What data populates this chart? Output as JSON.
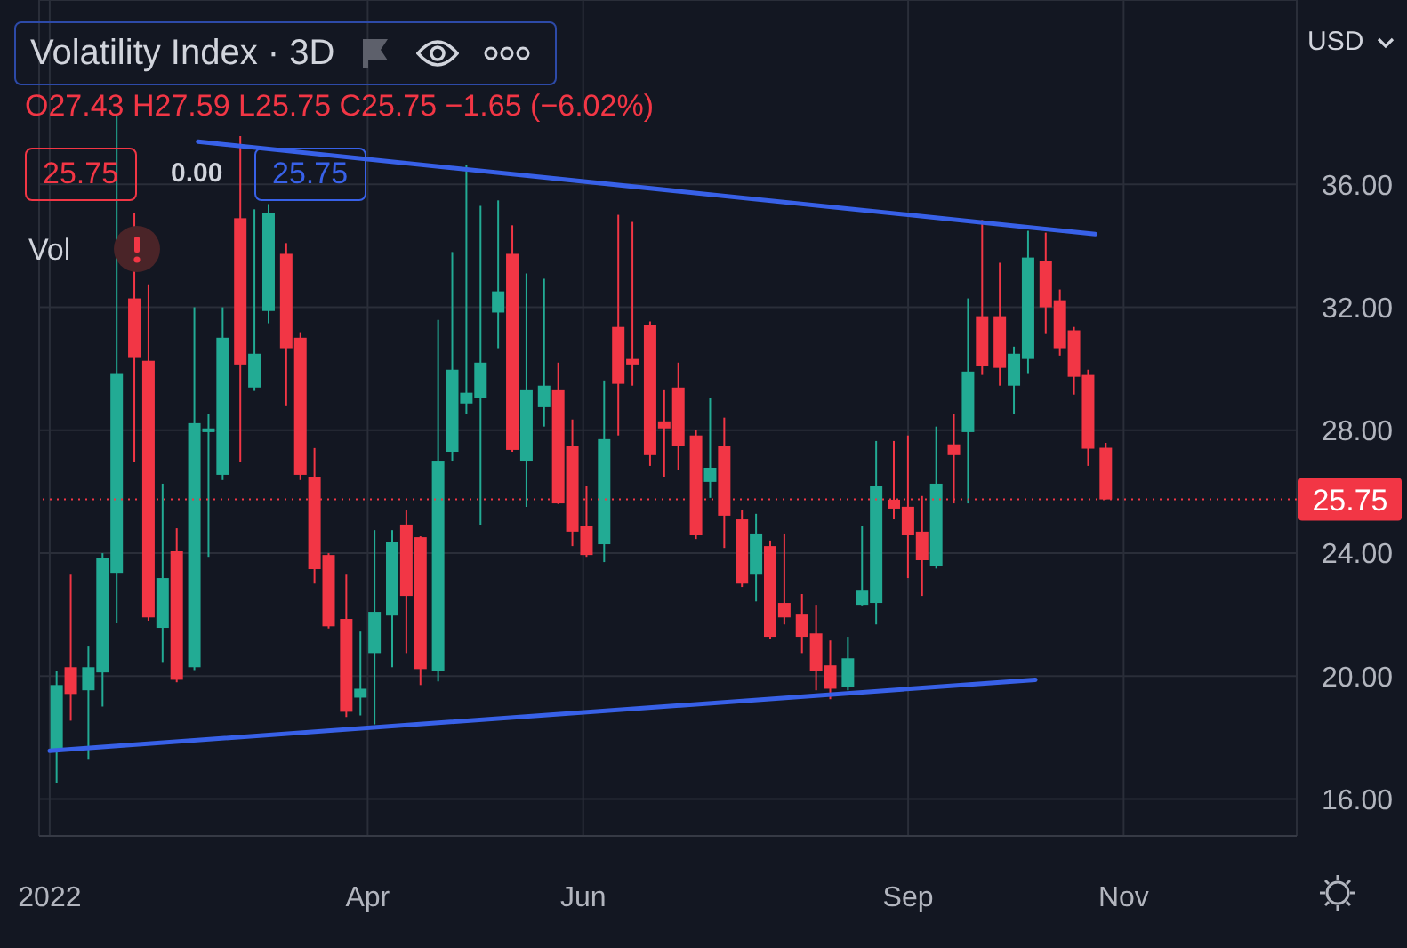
{
  "chart_data": {
    "type": "candlestick",
    "title": "Volatility Index · 3D",
    "annotations": [
      "O27.43 H27.59 L25.75 C25.75 −1.65 (−6.02%)",
      "25.75",
      "0.00",
      "25.75",
      "Vol",
      "USD"
    ],
    "x": [
      "2022-01-03",
      "2022-01-07",
      "2022-01-12",
      "2022-01-16",
      "2022-01-20",
      "2022-01-25",
      "2022-01-29",
      "2022-02-02",
      "2022-02-06",
      "2022-02-11",
      "2022-02-15",
      "2022-02-19",
      "2022-02-24",
      "2022-02-28",
      "2022-03-04",
      "2022-03-09",
      "2022-03-13",
      "2022-03-17",
      "2022-03-21",
      "2022-03-26",
      "2022-03-30",
      "2022-04-03",
      "2022-04-08",
      "2022-04-12",
      "2022-04-16",
      "2022-04-21",
      "2022-04-25",
      "2022-04-29",
      "2022-05-03",
      "2022-05-08",
      "2022-05-12",
      "2022-05-16",
      "2022-05-21",
      "2022-05-25",
      "2022-05-29",
      "2022-06-02",
      "2022-06-07",
      "2022-06-11",
      "2022-06-15",
      "2022-06-20",
      "2022-06-24",
      "2022-06-28",
      "2022-07-03",
      "2022-07-07",
      "2022-07-11",
      "2022-07-16",
      "2022-07-20",
      "2022-07-24",
      "2022-07-28",
      "2022-08-02",
      "2022-08-06",
      "2022-08-10",
      "2022-08-15",
      "2022-08-19",
      "2022-08-23",
      "2022-08-28",
      "2022-09-01",
      "2022-09-05",
      "2022-09-09",
      "2022-09-14",
      "2022-09-18",
      "2022-09-22",
      "2022-09-27",
      "2022-10-01",
      "2022-10-05",
      "2022-10-10",
      "2022-10-14",
      "2022-10-18",
      "2022-10-22",
      "2022-10-27"
    ],
    "ohlc": [
      [
        17.57,
        20.17,
        16.52,
        19.71
      ],
      [
        20.29,
        23.3,
        18.55,
        19.42
      ],
      [
        19.54,
        20.99,
        17.28,
        20.29
      ],
      [
        20.12,
        24.0,
        19.01,
        23.83
      ],
      [
        23.36,
        38.26,
        21.74,
        29.86
      ],
      [
        32.29,
        35.07,
        26.96,
        30.38
      ],
      [
        30.26,
        32.75,
        21.8,
        21.91
      ],
      [
        21.57,
        26.26,
        20.46,
        23.19
      ],
      [
        24.06,
        24.81,
        19.8,
        19.88
      ],
      [
        20.29,
        32.0,
        20.2,
        28.23
      ],
      [
        27.94,
        28.52,
        23.88,
        28.06
      ],
      [
        26.55,
        32.0,
        26.38,
        31.01
      ],
      [
        34.9,
        37.57,
        26.96,
        30.14
      ],
      [
        29.39,
        35.19,
        29.28,
        30.49
      ],
      [
        31.88,
        35.36,
        31.48,
        35.07
      ],
      [
        33.74,
        34.09,
        28.81,
        30.67
      ],
      [
        31.01,
        31.19,
        26.38,
        26.55
      ],
      [
        26.49,
        27.42,
        23.01,
        23.48
      ],
      [
        23.94,
        24.0,
        21.55,
        21.62
      ],
      [
        21.86,
        23.3,
        18.67,
        18.84
      ],
      [
        19.3,
        21.45,
        18.72,
        19.59
      ],
      [
        20.75,
        24.75,
        18.43,
        22.09
      ],
      [
        21.97,
        24.75,
        20.29,
        24.35
      ],
      [
        24.93,
        25.39,
        20.75,
        22.61
      ],
      [
        24.52,
        24.55,
        19.71,
        20.23
      ],
      [
        20.17,
        31.59,
        19.83,
        27.01
      ],
      [
        27.3,
        33.8,
        27.01,
        29.97
      ],
      [
        28.87,
        36.64,
        28.52,
        29.22
      ],
      [
        29.04,
        35.3,
        24.93,
        30.2
      ],
      [
        31.83,
        35.48,
        30.67,
        32.52
      ],
      [
        33.74,
        34.67,
        27.3,
        27.36
      ],
      [
        27.01,
        33.1,
        25.51,
        29.33
      ],
      [
        28.75,
        32.93,
        28.12,
        29.45
      ],
      [
        29.33,
        30.2,
        25.6,
        25.62
      ],
      [
        27.48,
        28.35,
        24.23,
        24.7
      ],
      [
        24.87,
        26.2,
        23.88,
        23.94
      ],
      [
        24.29,
        29.62,
        23.71,
        27.71
      ],
      [
        31.36,
        35.01,
        27.83,
        29.51
      ],
      [
        30.32,
        34.78,
        29.45,
        30.14
      ],
      [
        31.42,
        31.54,
        26.84,
        27.19
      ],
      [
        28.29,
        29.33,
        26.49,
        28.06
      ],
      [
        29.39,
        30.2,
        26.72,
        27.48
      ],
      [
        27.83,
        28.0,
        24.46,
        24.58
      ],
      [
        26.32,
        29.04,
        25.8,
        26.78
      ],
      [
        27.48,
        28.41,
        24.17,
        25.22
      ],
      [
        25.1,
        25.39,
        22.9,
        23.01
      ],
      [
        23.3,
        25.28,
        22.43,
        24.64
      ],
      [
        24.23,
        24.41,
        21.22,
        21.28
      ],
      [
        22.38,
        24.64,
        21.68,
        21.91
      ],
      [
        22.03,
        22.67,
        20.75,
        21.28
      ],
      [
        21.39,
        22.32,
        19.54,
        20.17
      ],
      [
        20.35,
        21.16,
        19.25,
        19.59
      ],
      [
        19.65,
        21.28,
        19.54,
        20.58
      ],
      [
        22.32,
        24.87,
        22.3,
        22.78
      ],
      [
        22.38,
        27.65,
        21.68,
        26.2
      ],
      [
        25.74,
        27.65,
        25.1,
        25.45
      ],
      [
        25.51,
        27.83,
        23.19,
        24.58
      ],
      [
        24.7,
        25.86,
        22.61,
        23.77
      ],
      [
        23.59,
        28.12,
        23.5,
        26.26
      ],
      [
        27.54,
        28.52,
        25.62,
        27.19
      ],
      [
        27.94,
        32.29,
        25.62,
        29.91
      ],
      [
        31.71,
        34.84,
        29.8,
        30.09
      ],
      [
        31.71,
        33.45,
        29.45,
        30.03
      ],
      [
        29.45,
        30.72,
        28.52,
        30.49
      ],
      [
        30.32,
        34.49,
        29.86,
        33.62
      ],
      [
        33.51,
        34.43,
        31.13,
        32.0
      ],
      [
        32.23,
        32.58,
        30.43,
        30.67
      ],
      [
        31.25,
        31.36,
        29.16,
        29.74
      ],
      [
        29.8,
        29.97,
        26.84,
        27.4
      ],
      [
        27.43,
        27.59,
        25.75,
        25.75
      ]
    ],
    "colors": [
      "#22ab94",
      "#f23645",
      "#22ab94",
      "#22ab94",
      "#22ab94",
      "#f23645",
      "#f23645",
      "#22ab94",
      "#f23645",
      "#22ab94",
      "#22ab94",
      "#22ab94",
      "#f23645",
      "#22ab94",
      "#22ab94",
      "#f23645",
      "#f23645",
      "#f23645",
      "#f23645",
      "#f23645",
      "#22ab94",
      "#22ab94",
      "#22ab94",
      "#f23645",
      "#f23645",
      "#22ab94",
      "#22ab94",
      "#22ab94",
      "#22ab94",
      "#22ab94",
      "#f23645",
      "#22ab94",
      "#22ab94",
      "#f23645",
      "#f23645",
      "#f23645",
      "#22ab94",
      "#f23645",
      "#f23645",
      "#f23645",
      "#f23645",
      "#f23645",
      "#f23645",
      "#22ab94",
      "#f23645",
      "#f23645",
      "#22ab94",
      "#f23645",
      "#f23645",
      "#f23645",
      "#f23645",
      "#f23645",
      "#22ab94",
      "#22ab94",
      "#22ab94",
      "#f23645",
      "#f23645",
      "#f23645",
      "#22ab94",
      "#f23645",
      "#22ab94",
      "#f23645",
      "#f23645",
      "#22ab94",
      "#22ab94",
      "#f23645",
      "#f23645",
      "#f23645",
      "#f23645",
      "#f23645"
    ],
    "series": [
      {
        "type": "line",
        "color": "#3861e8",
        "x": [
          "2022-02-12",
          "2022-10-24"
        ],
        "values": [
          37.39,
          34.38
        ]
      },
      {
        "type": "line",
        "color": "#3861e8",
        "x": [
          "2022-01-01",
          "2022-10-07"
        ],
        "values": [
          17.57,
          19.88
        ]
      }
    ],
    "ref_lines": [
      {
        "axis": "y",
        "value": 25.75,
        "label": "25.75",
        "color": "#f23645",
        "line_style": "dotted"
      }
    ],
    "xlim": [
      "2021-12-29",
      "2022-12-20"
    ],
    "xticks": [
      {
        "value": "2022-01-01",
        "label": "2022"
      },
      {
        "value": "2022-04-01",
        "label": "Apr"
      },
      {
        "value": "2022-06-01",
        "label": "Jun"
      },
      {
        "value": "2022-09-01",
        "label": "Sep"
      },
      {
        "value": "2022-11-01",
        "label": "Nov"
      }
    ],
    "ylim": [
      14.8,
      42
    ],
    "yticks": [
      {
        "value": 16,
        "label": "16.00"
      },
      {
        "value": 20,
        "label": "20.00"
      },
      {
        "value": 24,
        "label": "24.00"
      },
      {
        "value": 28,
        "label": "28.00"
      },
      {
        "value": 32,
        "label": "32.00"
      },
      {
        "value": 36,
        "label": "36.00"
      }
    ],
    "grid": true
  }
}
